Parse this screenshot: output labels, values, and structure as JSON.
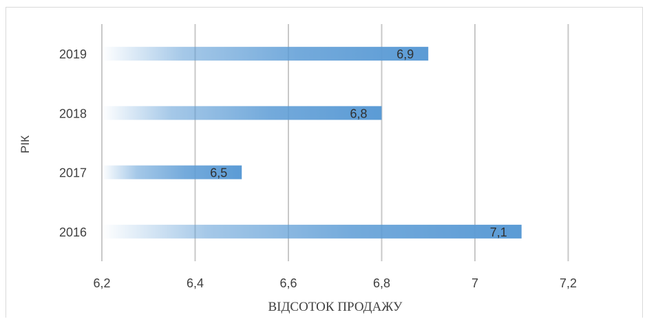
{
  "chart_data": {
    "type": "bar",
    "orientation": "horizontal",
    "categories": [
      "2016",
      "2017",
      "2018",
      "2019"
    ],
    "values": [
      7.1,
      6.5,
      6.8,
      6.9
    ],
    "data_labels": [
      "7,1",
      "6,5",
      "6,8",
      "6,9"
    ],
    "xlabel": "ВІДСОТОК ПРОДАЖУ",
    "ylabel": "РІК",
    "xlim": [
      6.2,
      7.3
    ],
    "x_ticks": [
      6.2,
      6.4,
      6.6,
      6.8,
      7,
      7.2
    ],
    "x_tick_labels": [
      "6,2",
      "6,4",
      "6,6",
      "6,8",
      "7",
      "7,2"
    ],
    "grid": true,
    "legend": "none",
    "colors": {
      "bar": "#5b9bd5",
      "grid": "#c8c8c8",
      "text": "#404040"
    }
  }
}
